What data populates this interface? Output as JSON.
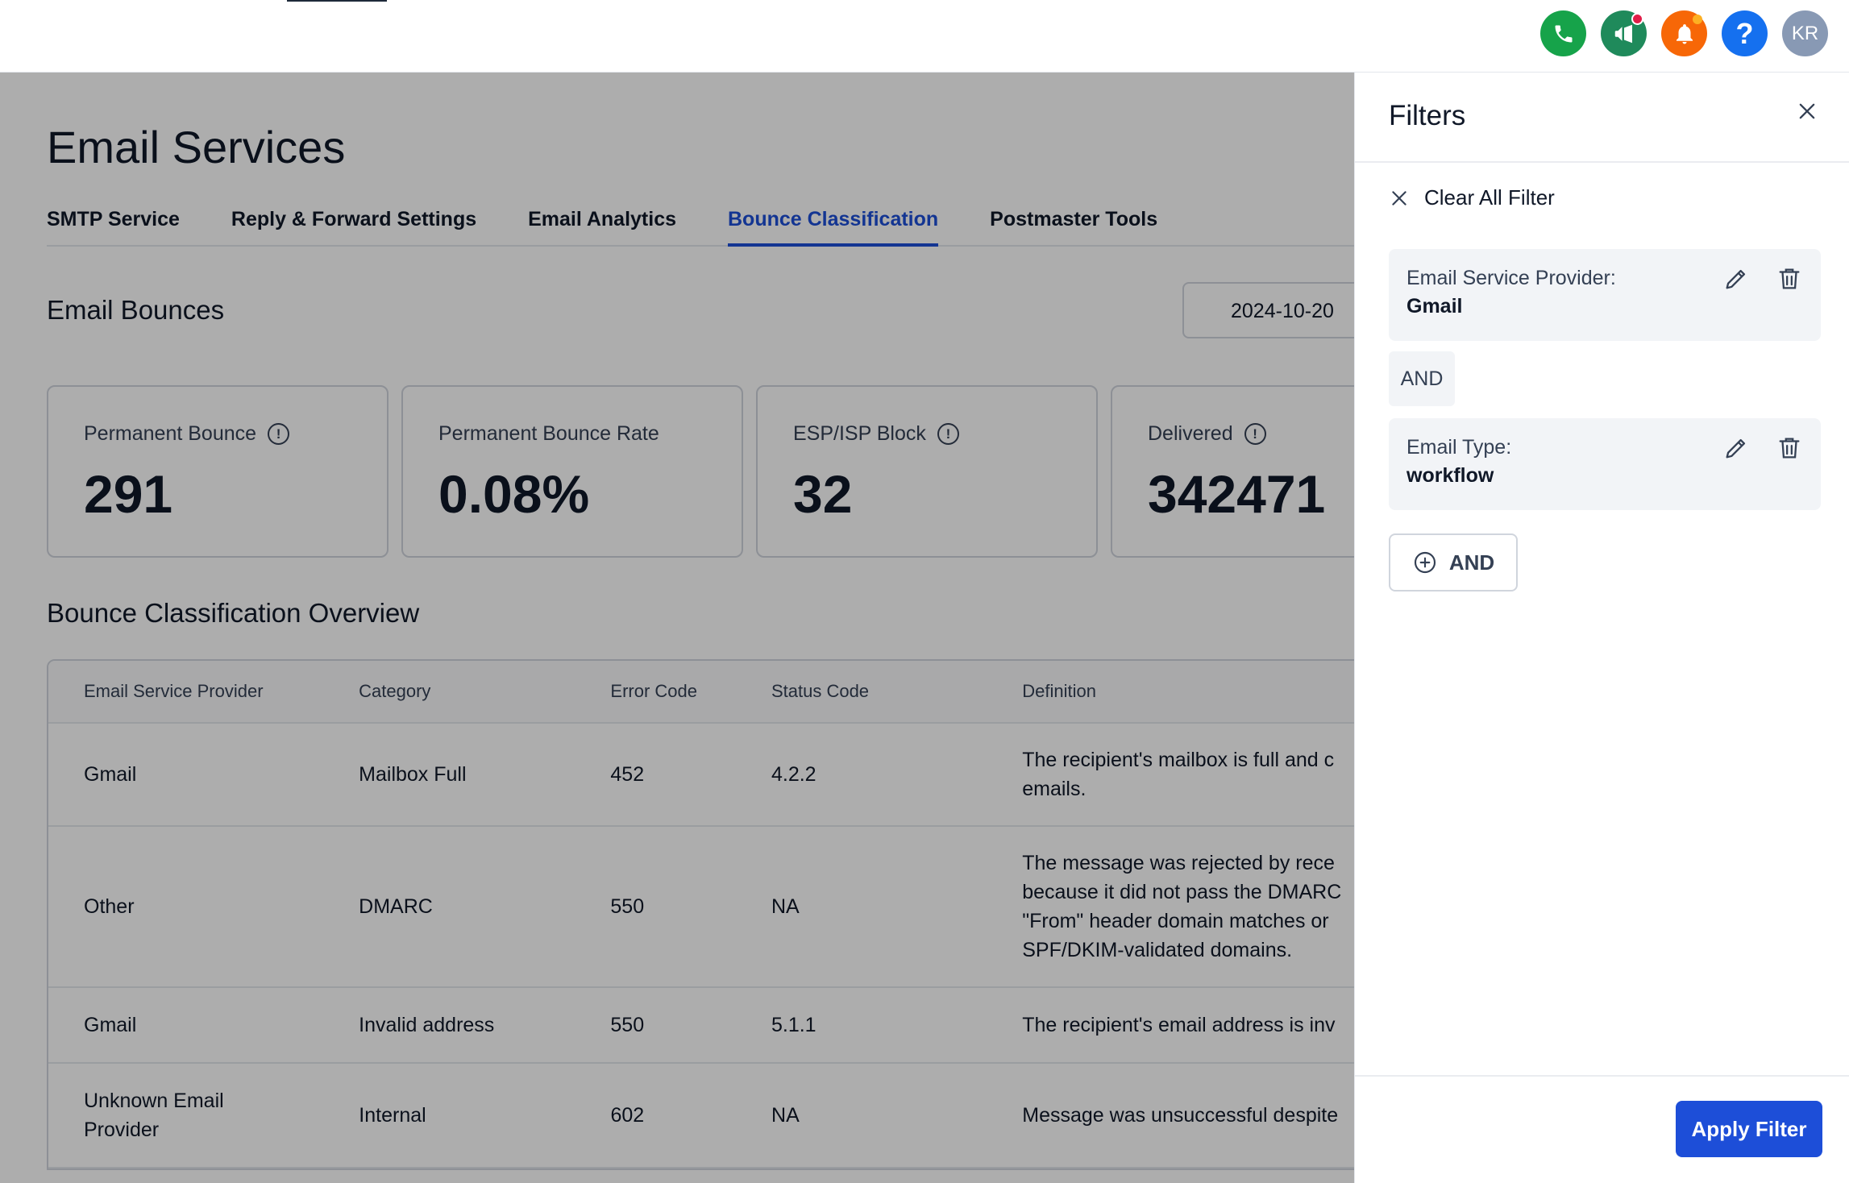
{
  "topbar": {
    "icons": [
      "phone-icon",
      "megaphone-icon",
      "bell-icon",
      "help-icon"
    ],
    "help_glyph": "?",
    "avatar_initials": "KR"
  },
  "page": {
    "title": "Email Services",
    "tabs": [
      {
        "label": "SMTP Service"
      },
      {
        "label": "Reply & Forward Settings"
      },
      {
        "label": "Email Analytics"
      },
      {
        "label": "Bounce Classification",
        "active": true
      },
      {
        "label": "Postmaster Tools"
      }
    ],
    "bounces_title": "Email Bounces",
    "date_value": "2024-10-20",
    "cards": [
      {
        "label": "Permanent Bounce",
        "value": "291",
        "info": true
      },
      {
        "label": "Permanent Bounce Rate",
        "value": "0.08%",
        "info": false
      },
      {
        "label": "ESP/ISP Block",
        "value": "32",
        "info": true
      },
      {
        "label": "Delivered",
        "value": "342471",
        "info": true
      }
    ],
    "overview_title": "Bounce Classification Overview",
    "table": {
      "headers": [
        "Email Service Provider",
        "Category",
        "Error Code",
        "Status Code",
        "Definition"
      ],
      "rows": [
        {
          "provider": "Gmail",
          "category": "Mailbox Full",
          "error": "452",
          "status": "4.2.2",
          "definition": "The recipient's mailbox is full and c emails."
        },
        {
          "provider": "Other",
          "category": "DMARC",
          "error": "550",
          "status": "NA",
          "definition": "The message was rejected by rece because it did not pass the DMARC \"From\" header domain matches or SPF/DKIM-validated domains."
        },
        {
          "provider": "Gmail",
          "category": "Invalid address",
          "error": "550",
          "status": "5.1.1",
          "definition": "The recipient's email address is inv"
        },
        {
          "provider": "Unknown Email Provider",
          "category": "Internal",
          "error": "602",
          "status": "NA",
          "definition": "Message was unsuccessful despite"
        }
      ]
    }
  },
  "filters": {
    "title": "Filters",
    "clear_all": "Clear All Filter",
    "items": [
      {
        "key": "Email Service Provider:",
        "value": "Gmail"
      },
      {
        "key": "Email Type:",
        "value": "workflow"
      }
    ],
    "and_label": "AND",
    "add_and_label": "AND",
    "apply_label": "Apply Filter"
  }
}
